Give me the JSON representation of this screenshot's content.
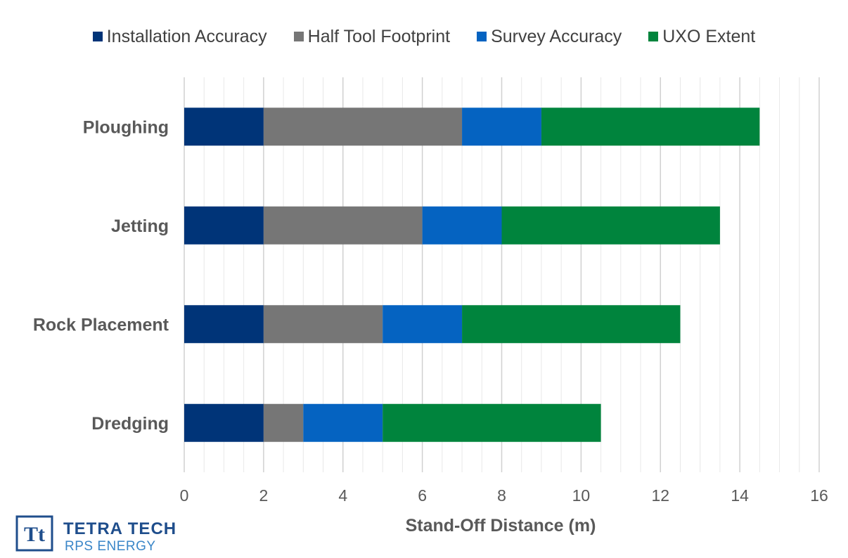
{
  "chart_data": {
    "type": "bar",
    "orientation": "horizontal",
    "stacked": true,
    "categories": [
      "Ploughing",
      "Jetting",
      "Rock Placement",
      "Dredging"
    ],
    "series": [
      {
        "name": "Installation Accuracy",
        "color": "#003478",
        "values": [
          2,
          2,
          2,
          2
        ]
      },
      {
        "name": "Half Tool Footprint",
        "color": "#767676",
        "values": [
          5,
          4,
          3,
          1
        ]
      },
      {
        "name": "Survey Accuracy",
        "color": "#0563c1",
        "values": [
          2,
          2,
          2,
          2
        ]
      },
      {
        "name": "UXO Extent",
        "color": "#00843d",
        "values": [
          5.5,
          5.5,
          5.5,
          5.5
        ]
      }
    ],
    "xlabel": "Stand-Off Distance (m)",
    "xlim": [
      0,
      16
    ],
    "xticks": [
      "0",
      "2",
      "4",
      "6",
      "8",
      "10",
      "12",
      "14",
      "16"
    ],
    "grid": "vertical",
    "legend": "top"
  },
  "logo": {
    "name": "TETRA TECH",
    "subtitle": "RPS ENERGY",
    "mark_text": "Tt"
  }
}
